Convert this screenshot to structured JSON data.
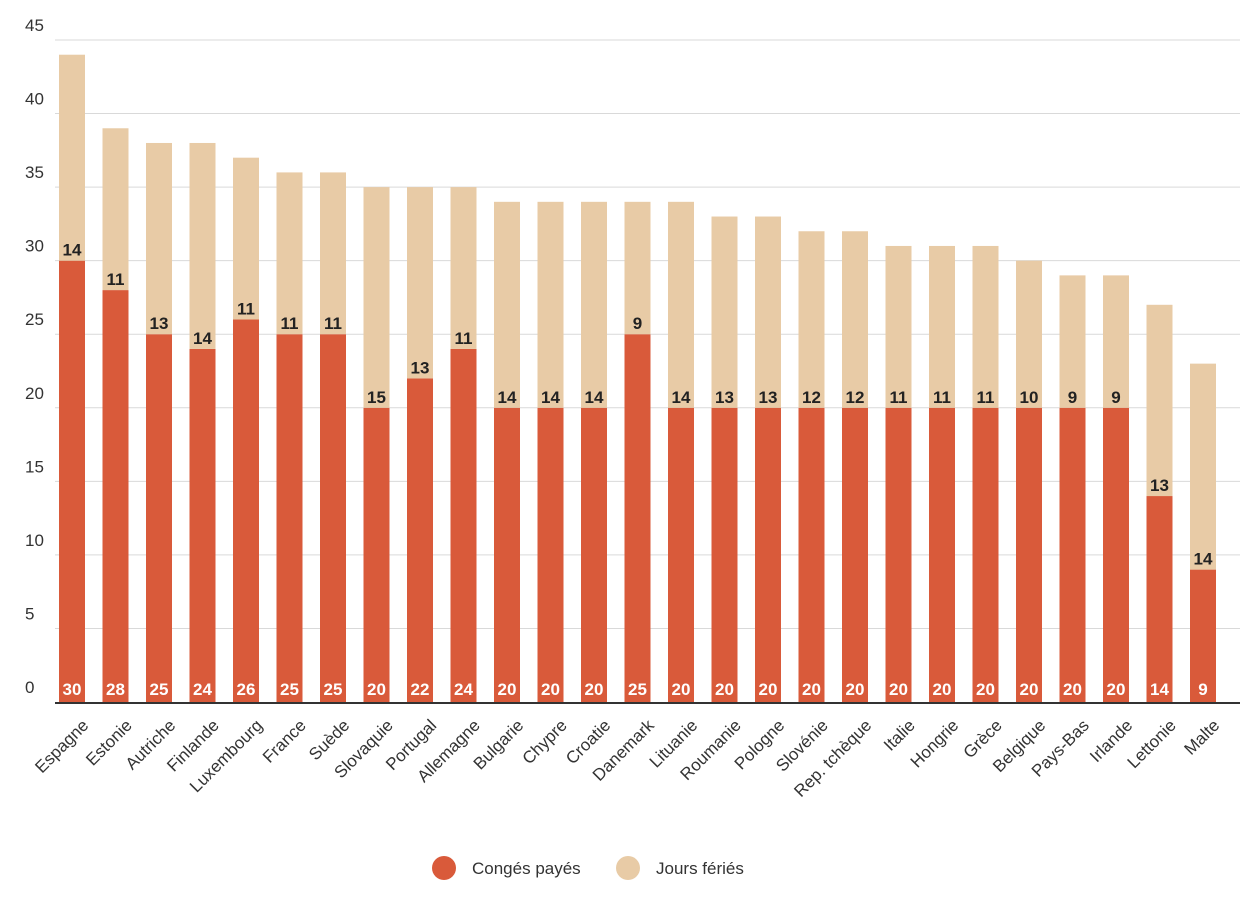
{
  "chart_data": {
    "type": "bar",
    "stacked": true,
    "categories": [
      "Espagne",
      "Estonie",
      "Autriche",
      "Finlande",
      "Luxembourg",
      "France",
      "Suède",
      "Slovaquie",
      "Portugal",
      "Allemagne",
      "Bulgarie",
      "Chypre",
      "Croatie",
      "Danemark",
      "Lituanie",
      "Roumanie",
      "Pologne",
      "Slovénie",
      "Rep. tchèque",
      "Italie",
      "Hongrie",
      "Grèce",
      "Belgique",
      "Pays-Bas",
      "Irlande",
      "Lettonie",
      "Malte"
    ],
    "series": [
      {
        "name": "Congés payés",
        "color": "#d95a3a",
        "values": [
          30,
          28,
          25,
          24,
          26,
          25,
          25,
          20,
          22,
          24,
          20,
          20,
          20,
          25,
          20,
          20,
          20,
          20,
          20,
          20,
          20,
          20,
          20,
          20,
          20,
          14,
          9
        ]
      },
      {
        "name": "Jours fériés",
        "color": "#e8cba6",
        "values": [
          14,
          11,
          13,
          14,
          11,
          11,
          11,
          15,
          13,
          11,
          14,
          14,
          14,
          9,
          14,
          13,
          13,
          12,
          12,
          11,
          11,
          11,
          10,
          9,
          9,
          13,
          14
        ]
      }
    ],
    "ylim": [
      0,
      45
    ],
    "yticks": [
      "0",
      "5",
      "10",
      "15",
      "20",
      "25",
      "30",
      "35",
      "40",
      "45"
    ],
    "grid": true,
    "legend_position": "bottom"
  }
}
